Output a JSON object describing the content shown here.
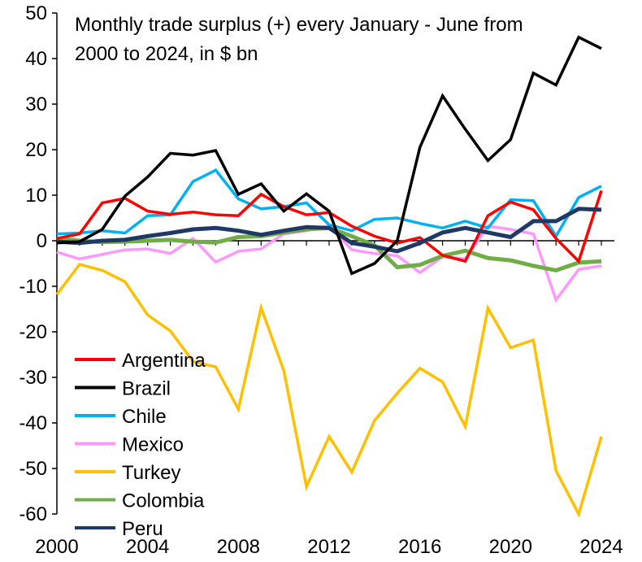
{
  "chart_data": {
    "type": "line",
    "title_lines": [
      "Monthly trade surplus (+)  every January - June from",
      "2000 to 2024, in $ bn"
    ],
    "xlabel": "",
    "ylabel": "",
    "xlim": [
      2000,
      2024
    ],
    "ylim": [
      -60,
      50
    ],
    "x_ticks": [
      2000,
      2004,
      2008,
      2012,
      2016,
      2020,
      2024
    ],
    "y_ticks": [
      50,
      40,
      30,
      20,
      10,
      0,
      -10,
      -20,
      -30,
      -40,
      -50,
      -60
    ],
    "x": [
      2000,
      2001,
      2002,
      2003,
      2004,
      2005,
      2006,
      2007,
      2008,
      2009,
      2010,
      2011,
      2012,
      2013,
      2014,
      2015,
      2016,
      2017,
      2018,
      2019,
      2020,
      2021,
      2022,
      2023,
      2024
    ],
    "legend_position": "bottom-left",
    "series": [
      {
        "name": "Argentina",
        "color": "#ff0000",
        "values": [
          0.5,
          1.5,
          8.3,
          9.3,
          6.5,
          5.8,
          6.3,
          5.7,
          5.5,
          10.2,
          7.5,
          5.7,
          6.2,
          3.2,
          1.0,
          -0.5,
          0.7,
          -3.2,
          -4.5,
          5.5,
          8.5,
          6.8,
          0.5,
          -4.5,
          11.0
        ]
      },
      {
        "name": "Brazil",
        "color": "#000000",
        "values": [
          -0.5,
          -0.2,
          2.5,
          9.8,
          14.0,
          19.2,
          18.8,
          19.8,
          10.2,
          12.5,
          6.5,
          10.3,
          6.5,
          -7.2,
          -5.0,
          0.0,
          20.5,
          31.8,
          24.5,
          17.6,
          22.2,
          36.8,
          34.2,
          44.7,
          42.2
        ]
      },
      {
        "name": "Chile",
        "color": "#00b0f0",
        "values": [
          1.5,
          1.7,
          2.2,
          1.7,
          5.5,
          5.7,
          13.0,
          15.5,
          9.2,
          7.0,
          7.5,
          8.3,
          3.5,
          2.2,
          4.7,
          5.0,
          3.8,
          2.8,
          4.3,
          2.8,
          9.0,
          8.8,
          1.0,
          9.5,
          12.0
        ]
      },
      {
        "name": "Mexico",
        "color": "#ff99ff",
        "values": [
          -2.5,
          -4.0,
          -3.0,
          -2.0,
          -1.8,
          -2.8,
          0.5,
          -4.7,
          -2.3,
          -1.8,
          1.5,
          2.2,
          3.3,
          -2.0,
          -2.8,
          -3.3,
          -7.0,
          -3.5,
          -4.0,
          3.2,
          2.5,
          1.5,
          -13.0,
          -6.3,
          -5.5
        ]
      },
      {
        "name": "Turkey",
        "color": "#ffc000",
        "values": [
          -11.8,
          -5.2,
          -6.5,
          -9.0,
          -16.3,
          -19.8,
          -26.5,
          -27.7,
          -37.0,
          -14.7,
          -28.5,
          -54.0,
          -43.0,
          -50.8,
          -39.5,
          -33.5,
          -28.0,
          -31.0,
          -40.8,
          -14.8,
          -23.5,
          -21.8,
          -50.5,
          -60.0,
          -43.0
        ]
      },
      {
        "name": "Colombia",
        "color": "#70ad47",
        "values": [
          0.5,
          0.0,
          -0.3,
          -0.2,
          0.0,
          0.2,
          -0.2,
          -0.4,
          0.8,
          1.0,
          1.8,
          2.5,
          2.8,
          1.0,
          -1.0,
          -5.8,
          -5.3,
          -3.3,
          -2.2,
          -3.8,
          -4.3,
          -5.5,
          -6.5,
          -4.8,
          -4.5
        ]
      },
      {
        "name": "Peru",
        "color": "#203864",
        "values": [
          -0.2,
          -0.5,
          0.0,
          0.2,
          1.0,
          1.7,
          2.5,
          2.8,
          2.2,
          1.3,
          2.2,
          3.0,
          2.8,
          -0.5,
          -1.3,
          -2.3,
          -0.5,
          1.8,
          2.8,
          1.8,
          0.8,
          4.3,
          4.3,
          7.0,
          6.8
        ]
      }
    ]
  }
}
